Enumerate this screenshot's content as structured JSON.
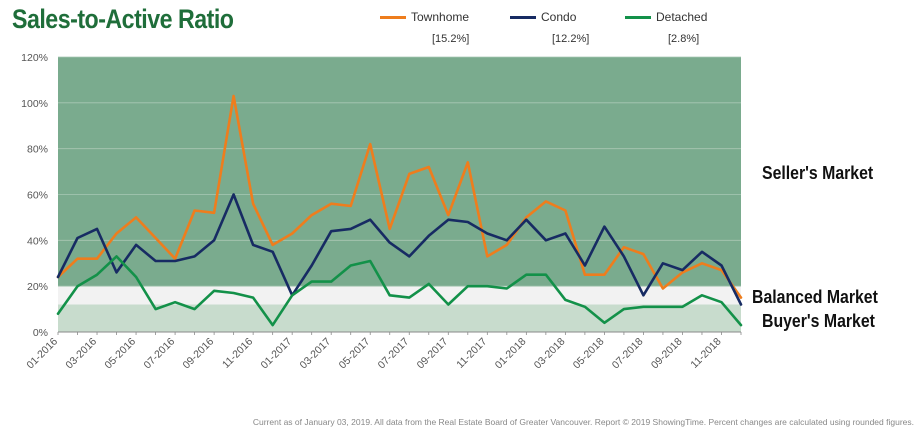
{
  "title": "Sales-to-Active Ratio",
  "legend": [
    {
      "name": "Townhome",
      "pct": "[15.2%]",
      "color": "#ee7d1d"
    },
    {
      "name": "Condo",
      "pct": "[12.2%]",
      "color": "#172b63"
    },
    {
      "name": "Detached",
      "pct": "[2.8%]",
      "color": "#139149"
    }
  ],
  "zones": {
    "seller": "Seller's Market",
    "balanced": "Balanced Market",
    "buyer": "Buyer's Market"
  },
  "footer": "Current as of January 03, 2019. All data from the Real Estate Board of Greater Vancouver. Report © 2019 ShowingTime. Percent changes are calculated using rounded figures.",
  "chart_data": {
    "type": "line",
    "title": "Sales-to-Active Ratio",
    "x": [
      "01-2016",
      "02-2016",
      "03-2016",
      "04-2016",
      "05-2016",
      "06-2016",
      "07-2016",
      "08-2016",
      "09-2016",
      "10-2016",
      "11-2016",
      "12-2016",
      "01-2017",
      "02-2017",
      "03-2017",
      "04-2017",
      "05-2017",
      "06-2017",
      "07-2017",
      "08-2017",
      "09-2017",
      "10-2017",
      "11-2017",
      "12-2017",
      "01-2018",
      "02-2018",
      "03-2018",
      "04-2018",
      "05-2018",
      "06-2018",
      "07-2018",
      "08-2018",
      "09-2018",
      "10-2018",
      "11-2018",
      "12-2018"
    ],
    "x_tick_labels": [
      "01-2016",
      "03-2016",
      "05-2016",
      "07-2016",
      "09-2016",
      "11-2016",
      "01-2017",
      "03-2017",
      "05-2017",
      "07-2017",
      "09-2017",
      "11-2017",
      "01-2018",
      "03-2018",
      "05-2018",
      "07-2018",
      "09-2018",
      "11-2018"
    ],
    "y_tick_labels": [
      "0%",
      "20%",
      "40%",
      "60%",
      "80%",
      "100%",
      "120%"
    ],
    "ylim": [
      0,
      120
    ],
    "zones": [
      {
        "name": "Buyer's Market",
        "from": 0,
        "to": 12,
        "color": "#c8dccd"
      },
      {
        "name": "Balanced Market",
        "from": 12,
        "to": 20,
        "color": "#f2f2f2"
      },
      {
        "name": "Seller's Market",
        "from": 20,
        "to": 120,
        "color": "#7aab8e"
      }
    ],
    "series": [
      {
        "name": "Townhome",
        "color": "#ee7d1d",
        "values": [
          24,
          32,
          32,
          43,
          50,
          41,
          32,
          53,
          52,
          103,
          56,
          38,
          43,
          51,
          56,
          55,
          82,
          45,
          69,
          72,
          51,
          74,
          33,
          38,
          50,
          57,
          53,
          25,
          25,
          37,
          34,
          19,
          26,
          30,
          27,
          15
        ]
      },
      {
        "name": "Condo",
        "color": "#172b63",
        "values": [
          24,
          41,
          45,
          26,
          38,
          31,
          31,
          33,
          40,
          60,
          38,
          35,
          16,
          29,
          44,
          45,
          49,
          39,
          33,
          42,
          49,
          48,
          43,
          40,
          49,
          40,
          43,
          29,
          46,
          33,
          16,
          30,
          27,
          35,
          29,
          12
        ]
      },
      {
        "name": "Detached",
        "color": "#139149",
        "values": [
          8,
          20,
          25,
          33,
          24,
          10,
          13,
          10,
          18,
          17,
          15,
          3,
          16,
          22,
          22,
          29,
          31,
          16,
          15,
          21,
          12,
          20,
          20,
          19,
          25,
          25,
          14,
          11,
          4,
          10,
          11,
          11,
          11,
          16,
          13,
          3
        ]
      }
    ]
  }
}
